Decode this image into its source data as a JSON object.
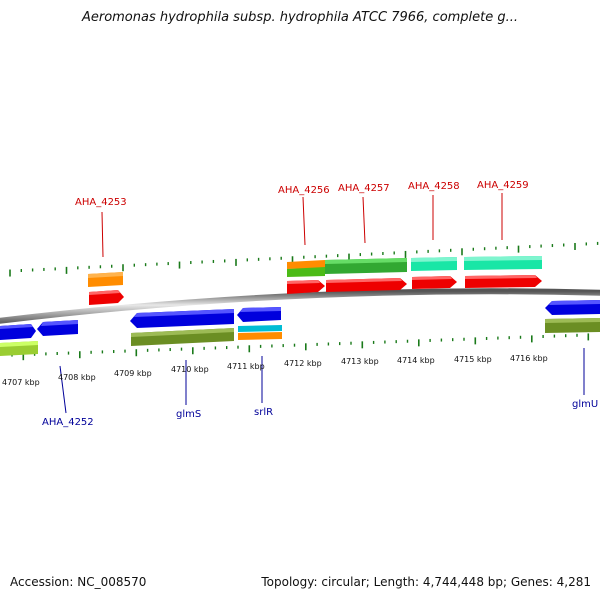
{
  "title": "Aeromonas hydrophila subsp. hydrophila ATCC 7966, complete g...",
  "footer": {
    "accession": "Accession: NC_008570",
    "summary": "Topology: circular; Length: 4,744,448 bp; Genes: 4,281"
  },
  "colors": {
    "forward_label": "#cc0000",
    "reverse_label": "#000099",
    "tick": "#1a7a1a",
    "backbone": "#888888"
  },
  "scale_labels": [
    "4707 kbp",
    "4708 kbp",
    "4709 kbp",
    "4710 kbp",
    "4711 kbp",
    "4712 kbp",
    "4713 kbp",
    "4714 kbp",
    "4715 kbp",
    "4716 kbp"
  ],
  "gene_labels_top": [
    "AHA_4253",
    "AHA_4256",
    "AHA_4257",
    "AHA_4258",
    "AHA_4259"
  ],
  "gene_labels_bottom": [
    "AHA_4252",
    "glmS",
    "srlR",
    "glmU"
  ]
}
